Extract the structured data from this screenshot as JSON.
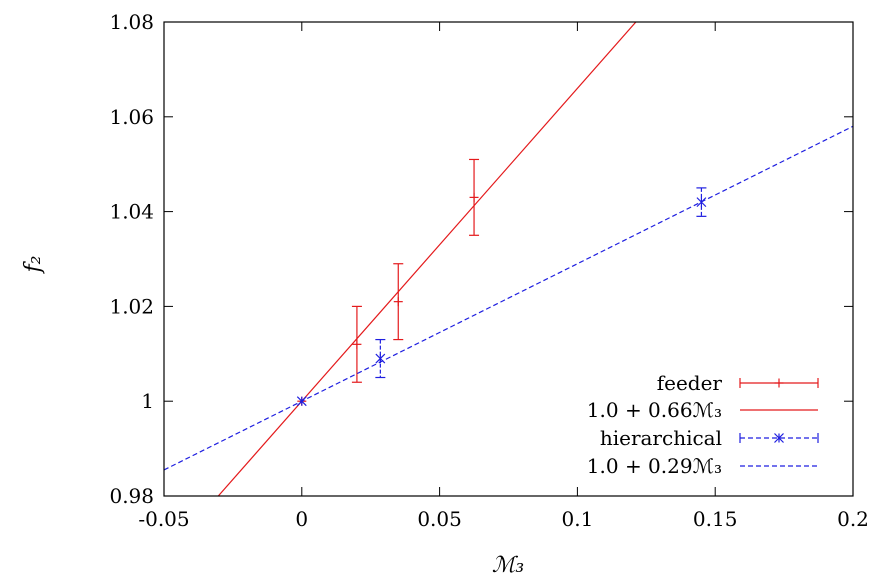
{
  "chart_data": {
    "type": "scatter",
    "title": "",
    "xlabel": "ℳ₃",
    "ylabel": "f₂",
    "xlim": [
      -0.05,
      0.2
    ],
    "ylim": [
      0.98,
      1.08
    ],
    "xticks": [
      -0.05,
      0,
      0.05,
      0.1,
      0.15,
      0.2
    ],
    "xtick_labels": [
      "-0.05",
      "0",
      "0.05",
      "0.1",
      "0.15",
      "0.2"
    ],
    "yticks": [
      0.98,
      1.0,
      1.02,
      1.04,
      1.06,
      1.08
    ],
    "ytick_labels": [
      "0.98",
      "1",
      "1.02",
      "1.04",
      "1.06",
      "1.08"
    ],
    "grid": false,
    "legend_position": "bottom-right",
    "series": [
      {
        "name": "feeder",
        "kind": "errorbar",
        "marker": "plus",
        "color": "#e41a1c",
        "line_style": "solid",
        "points": [
          {
            "x": 0.0,
            "y": 1.0,
            "err": 0.0
          },
          {
            "x": 0.02,
            "y": 1.012,
            "err": 0.008
          },
          {
            "x": 0.035,
            "y": 1.021,
            "err": 0.008
          },
          {
            "x": 0.0625,
            "y": 1.043,
            "err": 0.008
          }
        ]
      },
      {
        "name": "1.0 + 0.66ℳ₃",
        "kind": "fit",
        "color": "#e41a1c",
        "line_style": "solid",
        "intercept": 1.0,
        "slope": 0.66
      },
      {
        "name": "hierarchical",
        "kind": "errorbar",
        "marker": "star",
        "color": "#1f1fe0",
        "line_style": "dashed",
        "points": [
          {
            "x": 0.0,
            "y": 1.0,
            "err": 0.0
          },
          {
            "x": 0.0285,
            "y": 1.009,
            "err": 0.004
          },
          {
            "x": 0.145,
            "y": 1.042,
            "err": 0.003
          }
        ]
      },
      {
        "name": "1.0 + 0.29ℳ₃",
        "kind": "fit",
        "color": "#1f1fe0",
        "line_style": "dashed",
        "intercept": 1.0,
        "slope": 0.29
      }
    ]
  }
}
